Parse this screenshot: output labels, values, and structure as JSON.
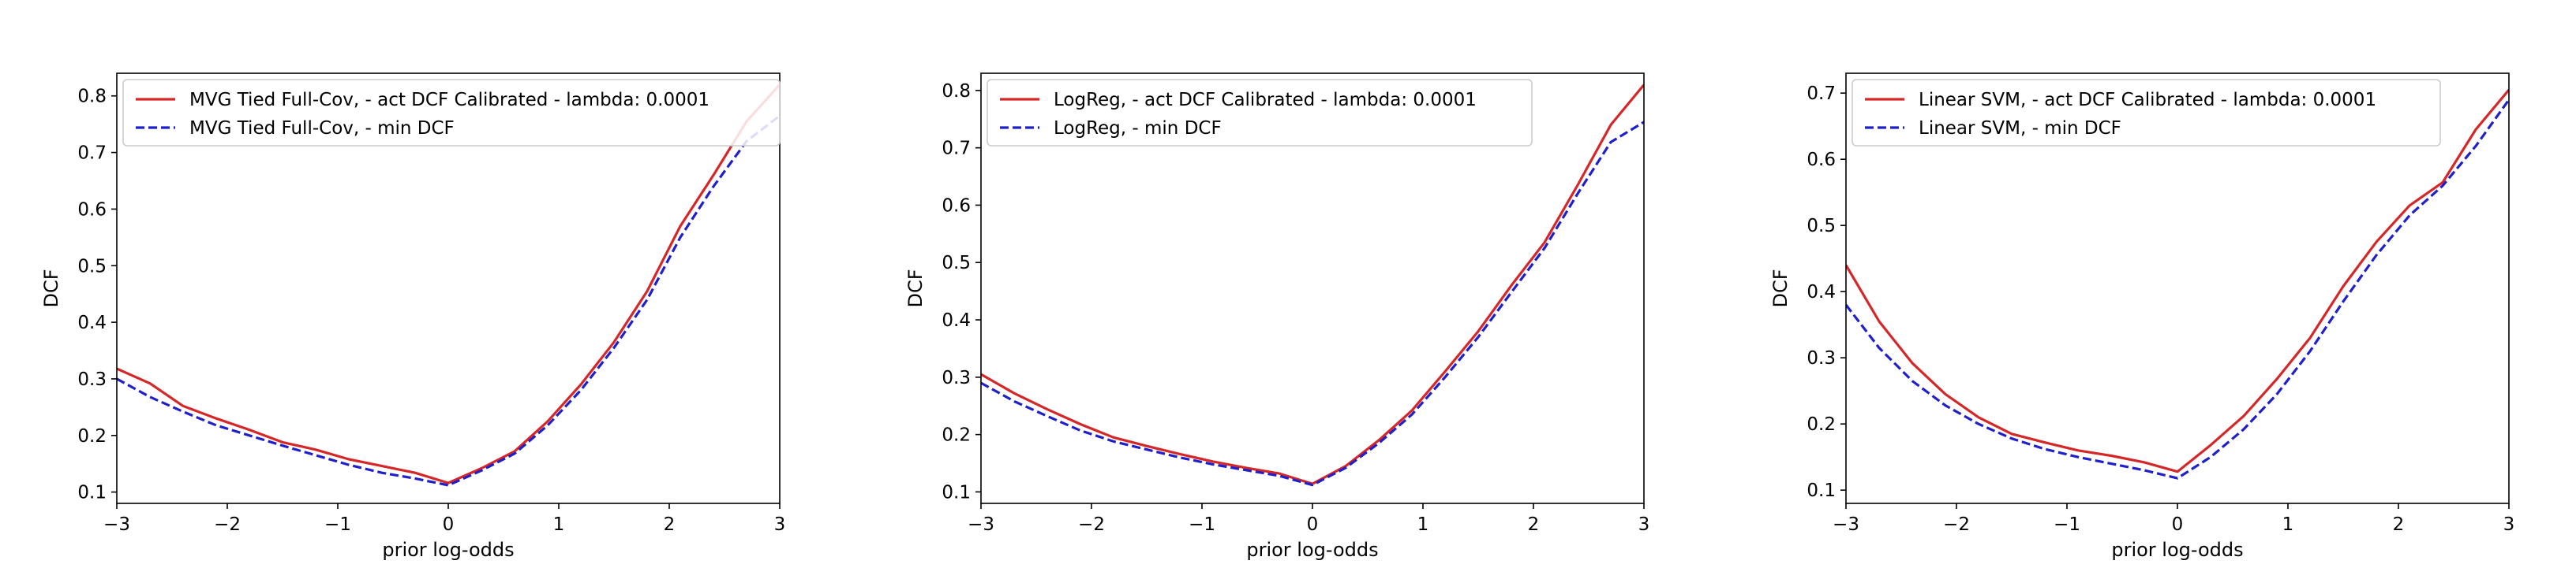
{
  "colors": {
    "act": "#d62728",
    "min": "#1f1fcc",
    "frame": "#000000",
    "legend_border": "#cccccc"
  },
  "chart_data": [
    {
      "type": "line",
      "xlabel": "prior log-odds",
      "ylabel": "DCF",
      "xlim": [
        -3,
        3
      ],
      "ylim": [
        0.08,
        0.84
      ],
      "xticks": [
        -3,
        -2,
        -1,
        0,
        1,
        2,
        3
      ],
      "xtick_labels": [
        "−3",
        "−2",
        "−1",
        "0",
        "1",
        "2",
        "3"
      ],
      "yticks": [
        0.1,
        0.2,
        0.3,
        0.4,
        0.5,
        0.6,
        0.7,
        0.8
      ],
      "ytick_labels": [
        "0.1",
        "0.2",
        "0.3",
        "0.4",
        "0.5",
        "0.6",
        "0.7",
        "0.8"
      ],
      "grid": false,
      "legend_position": "upper-left",
      "series": [
        {
          "name": "MVG Tied Full-Cov, - act DCF  Calibrated - lambda: 0.0001",
          "style": "solid",
          "color": "#d62728",
          "x": [
            -3,
            -2.7,
            -2.4,
            -2.1,
            -1.8,
            -1.5,
            -1.2,
            -0.9,
            -0.6,
            -0.3,
            0,
            0.3,
            0.6,
            0.9,
            1.2,
            1.5,
            1.8,
            2.1,
            2.4,
            2.7,
            3
          ],
          "y": [
            0.318,
            0.292,
            0.252,
            0.23,
            0.21,
            0.188,
            0.175,
            0.158,
            0.146,
            0.134,
            0.116,
            0.142,
            0.172,
            0.225,
            0.29,
            0.365,
            0.455,
            0.57,
            0.66,
            0.755,
            0.82
          ]
        },
        {
          "name": "MVG Tied Full-Cov, - min DCF",
          "style": "dashed",
          "color": "#1f1fcc",
          "x": [
            -3,
            -2.7,
            -2.4,
            -2.1,
            -1.8,
            -1.5,
            -1.2,
            -0.9,
            -0.6,
            -0.3,
            0,
            0.3,
            0.6,
            0.9,
            1.2,
            1.5,
            1.8,
            2.1,
            2.4,
            2.7,
            3
          ],
          "y": [
            0.3,
            0.268,
            0.242,
            0.218,
            0.2,
            0.182,
            0.165,
            0.148,
            0.134,
            0.124,
            0.112,
            0.138,
            0.168,
            0.218,
            0.28,
            0.355,
            0.44,
            0.55,
            0.64,
            0.72,
            0.765
          ]
        }
      ]
    },
    {
      "type": "line",
      "xlabel": "prior log-odds",
      "ylabel": "DCF",
      "xlim": [
        -3,
        3
      ],
      "ylim": [
        0.08,
        0.83
      ],
      "xticks": [
        -3,
        -2,
        -1,
        0,
        1,
        2,
        3
      ],
      "xtick_labels": [
        "−3",
        "−2",
        "−1",
        "0",
        "1",
        "2",
        "3"
      ],
      "yticks": [
        0.1,
        0.2,
        0.3,
        0.4,
        0.5,
        0.6,
        0.7,
        0.8
      ],
      "ytick_labels": [
        "0.1",
        "0.2",
        "0.3",
        "0.4",
        "0.5",
        "0.6",
        "0.7",
        "0.8"
      ],
      "grid": false,
      "legend_position": "upper-left",
      "series": [
        {
          "name": "LogReg, - act DCF  Calibrated - lambda: 0.0001",
          "style": "solid",
          "color": "#d62728",
          "x": [
            -3,
            -2.7,
            -2.4,
            -2.1,
            -1.8,
            -1.5,
            -1.2,
            -0.9,
            -0.6,
            -0.3,
            0,
            0.3,
            0.6,
            0.9,
            1.2,
            1.5,
            1.8,
            2.1,
            2.4,
            2.7,
            3
          ],
          "y": [
            0.305,
            0.272,
            0.244,
            0.218,
            0.195,
            0.18,
            0.166,
            0.153,
            0.142,
            0.132,
            0.114,
            0.145,
            0.19,
            0.242,
            0.31,
            0.38,
            0.46,
            0.535,
            0.635,
            0.74,
            0.81
          ]
        },
        {
          "name": "LogReg, - min DCF",
          "style": "dashed",
          "color": "#1f1fcc",
          "x": [
            -3,
            -2.7,
            -2.4,
            -2.1,
            -1.8,
            -1.5,
            -1.2,
            -0.9,
            -0.6,
            -0.3,
            0,
            0.3,
            0.6,
            0.9,
            1.2,
            1.5,
            1.8,
            2.1,
            2.4,
            2.7,
            3
          ],
          "y": [
            0.29,
            0.258,
            0.232,
            0.207,
            0.188,
            0.174,
            0.16,
            0.148,
            0.138,
            0.128,
            0.112,
            0.142,
            0.185,
            0.235,
            0.3,
            0.37,
            0.448,
            0.525,
            0.62,
            0.71,
            0.745
          ]
        }
      ]
    },
    {
      "type": "line",
      "xlabel": "prior log-odds",
      "ylabel": "DCF",
      "xlim": [
        -3,
        3
      ],
      "ylim": [
        0.08,
        0.73
      ],
      "xticks": [
        -3,
        -2,
        -1,
        0,
        1,
        2,
        3
      ],
      "xtick_labels": [
        "−3",
        "−2",
        "−1",
        "0",
        "1",
        "2",
        "3"
      ],
      "yticks": [
        0.1,
        0.2,
        0.3,
        0.4,
        0.5,
        0.6,
        0.7
      ],
      "ytick_labels": [
        "0.1",
        "0.2",
        "0.3",
        "0.4",
        "0.5",
        "0.6",
        "0.7"
      ],
      "grid": false,
      "legend_position": "upper-left",
      "series": [
        {
          "name": "Linear SVM, - act DCF  Calibrated - lambda: 0.0001",
          "style": "solid",
          "color": "#d62728",
          "x": [
            -3,
            -2.7,
            -2.4,
            -2.1,
            -1.8,
            -1.5,
            -1.2,
            -0.9,
            -0.6,
            -0.3,
            0,
            0.3,
            0.6,
            0.9,
            1.2,
            1.5,
            1.8,
            2.1,
            2.4,
            2.7,
            3
          ],
          "y": [
            0.44,
            0.355,
            0.292,
            0.245,
            0.21,
            0.185,
            0.172,
            0.16,
            0.152,
            0.142,
            0.128,
            0.168,
            0.212,
            0.268,
            0.33,
            0.408,
            0.475,
            0.53,
            0.565,
            0.645,
            0.705
          ]
        },
        {
          "name": "Linear SVM, - min DCF",
          "style": "dashed",
          "color": "#1f1fcc",
          "x": [
            -3,
            -2.7,
            -2.4,
            -2.1,
            -1.8,
            -1.5,
            -1.2,
            -0.9,
            -0.6,
            -0.3,
            0,
            0.3,
            0.6,
            0.9,
            1.2,
            1.5,
            1.8,
            2.1,
            2.4,
            2.7,
            3
          ],
          "y": [
            0.38,
            0.315,
            0.265,
            0.228,
            0.2,
            0.178,
            0.162,
            0.15,
            0.14,
            0.13,
            0.118,
            0.15,
            0.192,
            0.245,
            0.31,
            0.385,
            0.455,
            0.515,
            0.56,
            0.62,
            0.69
          ]
        }
      ]
    }
  ]
}
